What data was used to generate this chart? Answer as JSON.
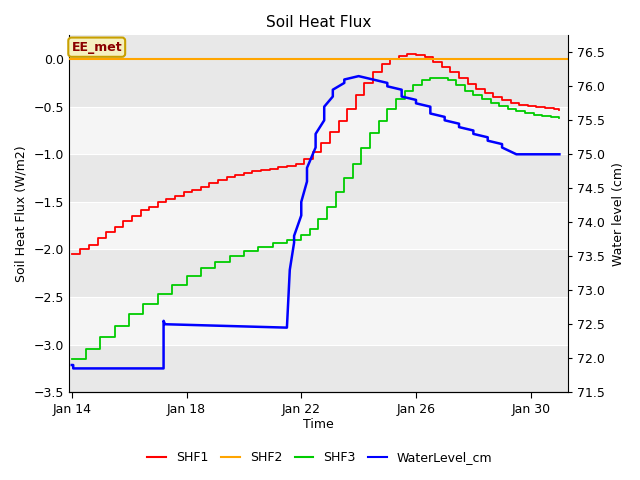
{
  "title": "Soil Heat Flux",
  "xlabel": "Time",
  "ylabel_left": "Soil Heat Flux (W/m2)",
  "ylabel_right": "Water level (cm)",
  "ylim_left": [
    -3.5,
    0.25
  ],
  "ylim_right": [
    71.5,
    76.75
  ],
  "background_color": "#ffffff",
  "band_colors": [
    "#e8e8e8",
    "#f5f5f5"
  ],
  "grid_color": "#ffffff",
  "annotation_label": "EE_met",
  "annotation_box_color": "#f5f0c0",
  "annotation_box_edge": "#c8a000",
  "annotation_text_color": "#8b0000",
  "legend_items": [
    "SHF1",
    "SHF2",
    "SHF3",
    "WaterLevel_cm"
  ],
  "legend_colors": [
    "#ff0000",
    "#ffa500",
    "#00cc00",
    "#0000ff"
  ],
  "x_ticks_labels": [
    "Jan 14",
    "Jan 18",
    "Jan 22",
    "Jan 26",
    "Jan 30"
  ],
  "x_ticks_positions": [
    0,
    4,
    8,
    12,
    16
  ],
  "yticks_left": [
    0.0,
    -0.5,
    -1.0,
    -1.5,
    -2.0,
    -2.5,
    -3.0,
    -3.5
  ],
  "yticks_right": [
    71.5,
    72.0,
    72.5,
    73.0,
    73.5,
    74.0,
    74.5,
    75.0,
    75.5,
    76.0,
    76.5
  ],
  "shf1_x": [
    0.0,
    0.3,
    0.6,
    0.9,
    1.2,
    1.5,
    1.8,
    2.1,
    2.4,
    2.7,
    3.0,
    3.3,
    3.6,
    3.9,
    4.2,
    4.5,
    4.8,
    5.1,
    5.4,
    5.7,
    6.0,
    6.3,
    6.6,
    6.9,
    7.2,
    7.5,
    7.8,
    8.1,
    8.4,
    8.7,
    9.0,
    9.3,
    9.6,
    9.9,
    10.2,
    10.5,
    10.8,
    11.1,
    11.4,
    11.7,
    12.0,
    12.3,
    12.6,
    12.9,
    13.2,
    13.5,
    13.8,
    14.1,
    14.4,
    14.7,
    15.0,
    15.3,
    15.6,
    15.9,
    16.2,
    16.5,
    16.8,
    17.0
  ],
  "shf1_y": [
    -2.05,
    -2.0,
    -1.95,
    -1.88,
    -1.82,
    -1.76,
    -1.7,
    -1.65,
    -1.59,
    -1.55,
    -1.5,
    -1.47,
    -1.44,
    -1.4,
    -1.37,
    -1.34,
    -1.3,
    -1.27,
    -1.24,
    -1.22,
    -1.2,
    -1.18,
    -1.16,
    -1.15,
    -1.13,
    -1.12,
    -1.1,
    -1.05,
    -0.98,
    -0.88,
    -0.77,
    -0.65,
    -0.52,
    -0.38,
    -0.25,
    -0.14,
    -0.05,
    0.0,
    0.03,
    0.05,
    0.04,
    0.02,
    -0.03,
    -0.08,
    -0.14,
    -0.2,
    -0.26,
    -0.31,
    -0.36,
    -0.4,
    -0.43,
    -0.46,
    -0.48,
    -0.49,
    -0.5,
    -0.51,
    -0.52,
    -0.53
  ],
  "shf3_x": [
    0.0,
    0.5,
    1.0,
    1.5,
    2.0,
    2.5,
    3.0,
    3.5,
    4.0,
    4.5,
    5.0,
    5.5,
    6.0,
    6.5,
    7.0,
    7.5,
    8.0,
    8.3,
    8.6,
    8.9,
    9.2,
    9.5,
    9.8,
    10.1,
    10.4,
    10.7,
    11.0,
    11.3,
    11.6,
    11.9,
    12.2,
    12.5,
    12.8,
    13.1,
    13.4,
    13.7,
    14.0,
    14.3,
    14.6,
    14.9,
    15.2,
    15.5,
    15.8,
    16.1,
    16.4,
    16.7,
    17.0
  ],
  "shf3_y": [
    -3.15,
    -3.05,
    -2.92,
    -2.8,
    -2.68,
    -2.57,
    -2.47,
    -2.37,
    -2.28,
    -2.2,
    -2.13,
    -2.07,
    -2.02,
    -1.97,
    -1.93,
    -1.9,
    -1.85,
    -1.78,
    -1.68,
    -1.55,
    -1.4,
    -1.25,
    -1.1,
    -0.93,
    -0.78,
    -0.65,
    -0.52,
    -0.42,
    -0.34,
    -0.27,
    -0.22,
    -0.2,
    -0.2,
    -0.22,
    -0.27,
    -0.33,
    -0.38,
    -0.42,
    -0.46,
    -0.49,
    -0.52,
    -0.55,
    -0.57,
    -0.59,
    -0.6,
    -0.61,
    -0.62
  ],
  "water_x": [
    0.0,
    0.05,
    0.05,
    3.2,
    3.2,
    3.25,
    3.25,
    7.5,
    7.5,
    7.6,
    7.6,
    7.75,
    7.75,
    8.0,
    8.0,
    8.2,
    8.2,
    8.5,
    8.5,
    8.8,
    8.8,
    9.1,
    9.1,
    9.5,
    9.5,
    10.0,
    10.0,
    10.5,
    10.5,
    11.0,
    11.0,
    11.5,
    11.5,
    12.0,
    12.0,
    12.5,
    12.5,
    13.0,
    13.0,
    13.5,
    13.5,
    14.0,
    14.0,
    14.5,
    14.5,
    15.0,
    15.0,
    15.5,
    15.5,
    16.0,
    16.0,
    16.5,
    16.5,
    17.0
  ],
  "water_y": [
    71.9,
    71.9,
    71.85,
    71.85,
    72.55,
    72.5,
    72.5,
    72.45,
    72.45,
    73.3,
    73.3,
    73.7,
    73.8,
    74.1,
    74.3,
    74.6,
    74.8,
    75.1,
    75.3,
    75.5,
    75.7,
    75.85,
    75.95,
    76.05,
    76.1,
    76.15,
    76.15,
    76.1,
    76.1,
    76.05,
    76.0,
    75.95,
    75.85,
    75.8,
    75.75,
    75.7,
    75.6,
    75.55,
    75.5,
    75.45,
    75.4,
    75.35,
    75.3,
    75.25,
    75.2,
    75.15,
    75.1,
    75.0,
    75.0,
    75.0,
    75.0,
    75.0,
    75.0,
    75.0
  ]
}
